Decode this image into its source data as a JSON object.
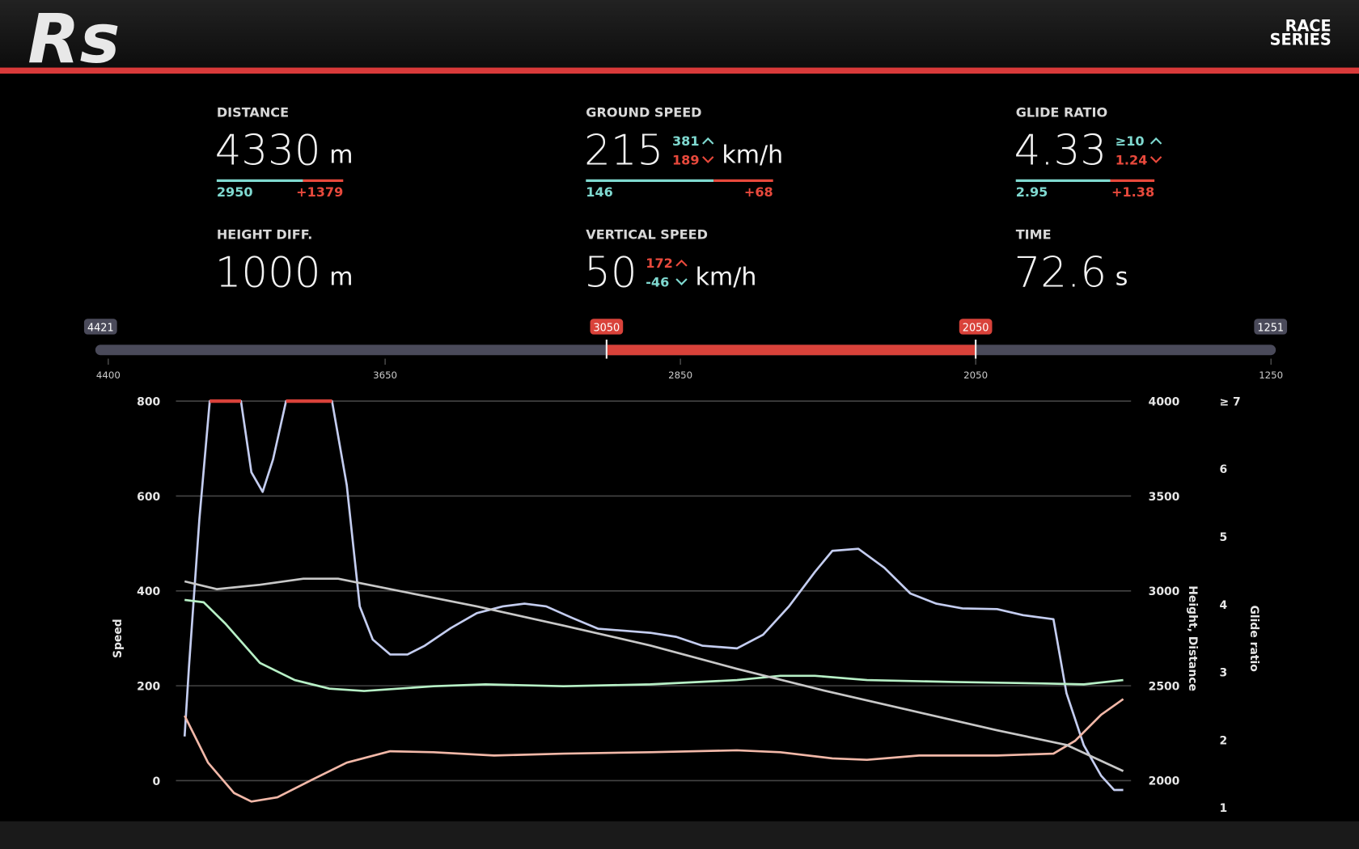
{
  "header": {
    "logo": "Rs",
    "brand_line1": "RACE",
    "brand_line2": "SERIES"
  },
  "stats": [
    {
      "label": "DISTANCE",
      "value": "4330",
      "unit": "m",
      "bar": [
        "2950",
        "+1379"
      ]
    },
    {
      "label": "GROUND SPEED",
      "value": "215",
      "up": {
        "text": "381",
        "color": "#7fd9d0"
      },
      "down": {
        "text": "189",
        "color": "#e8493c"
      },
      "unit": "km/h",
      "bar": [
        "146",
        "+68"
      ]
    },
    {
      "label": "GLIDE RATIO",
      "value": "4.33",
      "up": {
        "text": "≥10",
        "color": "#7fd9d0"
      },
      "down": {
        "text": "1.24",
        "color": "#e8493c"
      },
      "bar": [
        "2.95",
        "+1.38"
      ]
    },
    {
      "label": "HEIGHT DIFF.",
      "value": "1000",
      "unit": "m"
    },
    {
      "label": "VERTICAL SPEED",
      "value": "50",
      "up": {
        "text": "172",
        "color": "#e8493c"
      },
      "down": {
        "text": "-46",
        "color": "#7fd9d0"
      },
      "unit": "km/h"
    },
    {
      "label": "TIME",
      "value": "72.6",
      "unit": "s"
    }
  ],
  "range_slider": {
    "lim": [
      4421,
      1251
    ],
    "selection": [
      3050,
      2050
    ],
    "ticks": [
      4400,
      3650,
      2850,
      2050,
      1250
    ],
    "color": "#d9423a"
  },
  "chart_data": {
    "type": "line",
    "ylabel": "Speed",
    "y2label": "Height, Distance",
    "y3label": "Glide ratio",
    "xlim": [
      0,
      4330
    ],
    "ylim": [
      -71,
      800
    ],
    "yticks": [
      0,
      200,
      400,
      600,
      800
    ],
    "y2lim": [
      1822,
      4000
    ],
    "y2ticks": [
      2000,
      2500,
      3000,
      3500,
      4000
    ],
    "y3lim": [
      0.9,
      7
    ],
    "y3ticks": [
      1,
      2,
      3,
      4,
      5,
      6,
      {
        "value": 7,
        "label": "≥ 7"
      }
    ],
    "grid": true,
    "clip_color": "#d9423a",
    "series": [
      {
        "color": "#c4cdf0",
        "axis": "y3",
        "x": [
          0,
          20,
          68,
          116,
          260,
          308,
          360,
          408,
          468,
          680,
          748,
          808,
          868,
          948,
          1028,
          1108,
          1228,
          1348,
          1468,
          1568,
          1668,
          1788,
          1908,
          2028,
          2148,
          2268,
          2388,
          2548,
          2668,
          2788,
          2908,
          2988,
          3108,
          3228,
          3348,
          3468,
          3588,
          3748,
          3868,
          4008,
          4068,
          4148,
          4228,
          4288,
          4330
        ],
        "values": [
          2.05,
          3.07,
          5.25,
          7,
          7,
          5.95,
          5.66,
          6.14,
          7,
          7,
          5.76,
          3.97,
          3.48,
          3.26,
          3.26,
          3.39,
          3.65,
          3.87,
          3.97,
          4.01,
          3.97,
          3.8,
          3.64,
          3.61,
          3.58,
          3.52,
          3.39,
          3.35,
          3.55,
          3.97,
          4.48,
          4.79,
          4.82,
          4.54,
          4.16,
          4.01,
          3.94,
          3.93,
          3.84,
          3.78,
          2.69,
          1.92,
          1.47,
          1.26,
          1.26
        ]
      },
      {
        "color": "#b7f0c6",
        "axis": "y",
        "x": [
          0,
          88,
          188,
          348,
          508,
          668,
          828,
          1148,
          1388,
          1748,
          2148,
          2548,
          2748,
          2908,
          3148,
          3548,
          3948,
          4148,
          4330
        ],
        "values": [
          381,
          376,
          331,
          248,
          212,
          194,
          189,
          199,
          203,
          199,
          203,
          212,
          221,
          221,
          212,
          208,
          205,
          203,
          212
        ]
      },
      {
        "color": "#f2b8a8",
        "axis": "y",
        "x": [
          0,
          108,
          228,
          308,
          428,
          588,
          748,
          948,
          1148,
          1428,
          1748,
          2148,
          2548,
          2748,
          2988,
          3148,
          3388,
          3748,
          4008,
          4108,
          4228,
          4330
        ],
        "values": [
          137,
          38,
          -26,
          -44,
          -35,
          2,
          38,
          62,
          60,
          53,
          57,
          60,
          64,
          60,
          47,
          44,
          53,
          53,
          57,
          84,
          139,
          172
        ]
      },
      {
        "color": "#c8c8c8",
        "axis": "y2",
        "x": [
          0,
          148,
          348,
          548,
          708,
          948,
          1348,
          1748,
          2148,
          2548,
          2948,
          3348,
          3748,
          4068,
          4330
        ],
        "values": [
          3050,
          3009,
          3032,
          3064,
          3064,
          3009,
          2918,
          2817,
          2712,
          2589,
          2475,
          2370,
          2265,
          2188,
          2050
        ]
      }
    ]
  }
}
